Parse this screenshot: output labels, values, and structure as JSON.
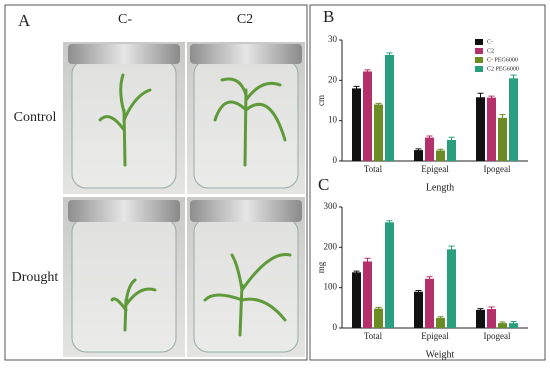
{
  "panel_a": {
    "label": "A",
    "columns": [
      "C-",
      "C2"
    ],
    "rows": [
      "Control",
      "Drought"
    ]
  },
  "chart_data": [
    {
      "type": "bar",
      "panel_label": "B",
      "x_label": "Length",
      "y_label": "cm",
      "categories": [
        "Total",
        "Epigeal",
        "Ipogeal"
      ],
      "series": [
        {
          "name": "C-",
          "color": "#111111",
          "values": [
            18,
            2.7,
            15.8
          ],
          "errors": [
            0.5,
            0.3,
            1.0
          ]
        },
        {
          "name": "C2",
          "color": "#b3306b",
          "values": [
            22.2,
            5.8,
            15.7
          ],
          "errors": [
            0.4,
            0.4,
            0.4
          ]
        },
        {
          "name": "C- PEG6000",
          "color": "#6b8c22",
          "values": [
            14,
            2.6,
            10.7
          ],
          "errors": [
            0.3,
            0.3,
            0.8
          ]
        },
        {
          "name": "C2 PEG6000",
          "color": "#2a9f80",
          "values": [
            26.3,
            5.2,
            20.5
          ],
          "errors": [
            0.5,
            0.7,
            0.8
          ]
        }
      ],
      "ylim": [
        0,
        30
      ],
      "yticks": [
        0,
        10,
        20,
        30
      ],
      "legend": "top-right"
    },
    {
      "type": "bar",
      "panel_label": "C",
      "x_label": "Weight",
      "y_label": "mg",
      "categories": [
        "Total",
        "Epigeal",
        "Ipogeal"
      ],
      "series": [
        {
          "name": "C-",
          "color": "#111111",
          "values": [
            138,
            90,
            45
          ],
          "errors": [
            3,
            3,
            3
          ]
        },
        {
          "name": "C2",
          "color": "#b3306b",
          "values": [
            165,
            122,
            47
          ],
          "errors": [
            8,
            5,
            5
          ]
        },
        {
          "name": "C- PEG6000",
          "color": "#6b8c22",
          "values": [
            48,
            25,
            12
          ],
          "errors": [
            3,
            3,
            3
          ]
        },
        {
          "name": "C2 PEG6000",
          "color": "#2a9f80",
          "values": [
            262,
            195,
            12
          ],
          "errors": [
            4,
            8,
            4
          ]
        }
      ],
      "ylim": [
        0,
        300
      ],
      "yticks": [
        0,
        100,
        200,
        300
      ]
    }
  ]
}
